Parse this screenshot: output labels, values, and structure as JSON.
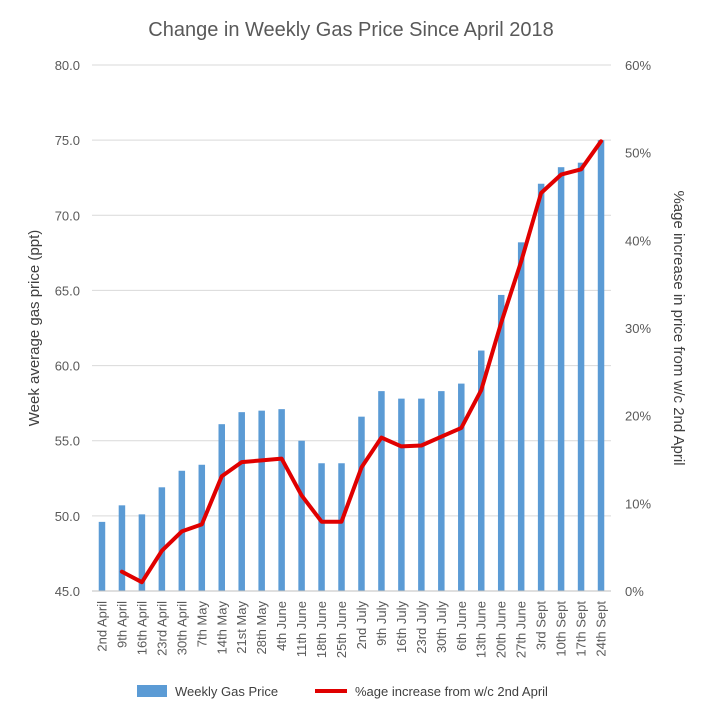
{
  "chart_data": {
    "type": "bar",
    "title": "Change in Weekly Gas Price Since April 2018",
    "ylabel": "Week average gas price (ppt)",
    "y2label": "%age increase in price from w/c 2nd April",
    "ylim": [
      45.0,
      80.0
    ],
    "y2lim": [
      0,
      0.6
    ],
    "yticks": [
      "45.0",
      "50.0",
      "55.0",
      "60.0",
      "65.0",
      "70.0",
      "75.0",
      "80.0"
    ],
    "y2ticks": [
      "0%",
      "10%",
      "20%",
      "30%",
      "40%",
      "50%",
      "60%"
    ],
    "grid": true,
    "legend_position": "bottom",
    "categories": [
      "2nd April",
      "9th April",
      "16th April",
      "23rd April",
      "30th April",
      "7th May",
      "14th May",
      "21st May",
      "28th May",
      "4th June",
      "11th June",
      "18th June",
      "25th June",
      "2nd July",
      "9th July",
      "16th July",
      "23rd July",
      "30th July",
      "6th June",
      "13th June",
      "20th June",
      "27th June",
      "3rd Sept",
      "10th Sept",
      "17th Sept",
      "24th Sept"
    ],
    "series": [
      {
        "name": "Weekly Gas Price",
        "type": "bar",
        "axis": "left",
        "color": "#5B9BD5",
        "values": [
          49.6,
          50.7,
          50.1,
          51.9,
          53.0,
          53.4,
          56.1,
          56.9,
          57.0,
          57.1,
          55.0,
          53.5,
          53.5,
          56.6,
          58.3,
          57.8,
          57.8,
          58.3,
          58.8,
          61.0,
          64.7,
          68.2,
          72.1,
          73.2,
          73.5,
          75.0
        ]
      },
      {
        "name": "%age increase from w/c 2nd April",
        "type": "line",
        "axis": "right",
        "color": "#E00000",
        "values": [
          null,
          0.022,
          0.01,
          0.046,
          0.068,
          0.076,
          0.131,
          0.147,
          0.149,
          0.151,
          0.109,
          0.079,
          0.079,
          0.141,
          0.175,
          0.165,
          0.166,
          0.176,
          0.186,
          0.229,
          0.306,
          0.376,
          0.454,
          0.475,
          0.481,
          0.513
        ]
      }
    ]
  }
}
